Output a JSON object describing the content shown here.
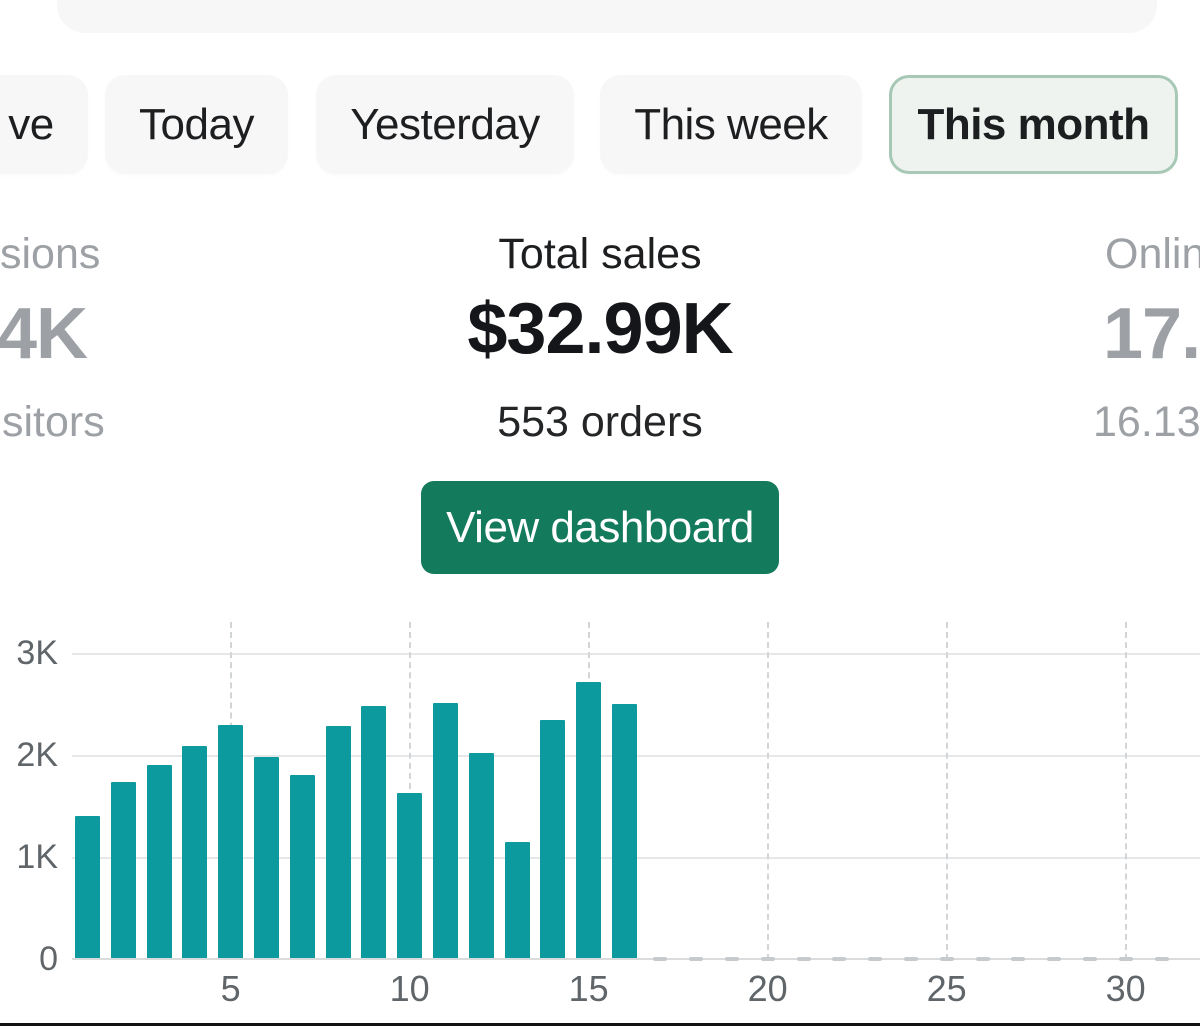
{
  "filters": {
    "items": [
      {
        "label": "ve",
        "selected": false
      },
      {
        "label": "Today",
        "selected": false
      },
      {
        "label": "Yesterday",
        "selected": false
      },
      {
        "label": "This week",
        "selected": false
      },
      {
        "label": "This month",
        "selected": true
      }
    ]
  },
  "stats": {
    "left": {
      "top_label": "sions",
      "value": "4K",
      "bottom_label": "sitors"
    },
    "center": {
      "top_label": "Total sales",
      "value": "$32.99K",
      "bottom_label": "553 orders"
    },
    "right": {
      "top_label": "Onlin",
      "value": "17.",
      "bottom_label": "16.13"
    }
  },
  "cta": {
    "label": "View dashboard"
  },
  "chart_data": {
    "type": "bar",
    "title": "",
    "xlabel": "",
    "ylabel": "",
    "x": [
      1,
      2,
      3,
      4,
      5,
      6,
      7,
      8,
      9,
      10,
      11,
      12,
      13,
      14,
      15,
      16
    ],
    "values": [
      1410,
      1750,
      1910,
      2100,
      2300,
      1990,
      1810,
      2290,
      2490,
      1640,
      2520,
      2030,
      1160,
      2350,
      2730,
      2510
    ],
    "x_range": [
      1,
      31
    ],
    "ylim": [
      0,
      3200
    ],
    "x_ticks": [
      5,
      10,
      15,
      20,
      25,
      30
    ],
    "y_ticks": [
      {
        "label": "0",
        "value": 0
      },
      {
        "label": "1K",
        "value": 1000
      },
      {
        "label": "2K",
        "value": 2000
      },
      {
        "label": "3K",
        "value": 3000
      }
    ],
    "grid": true,
    "legend": false,
    "future_days_dashed": [
      17,
      18,
      19,
      20,
      21,
      22,
      23,
      24,
      25,
      26,
      27,
      28,
      29,
      30,
      31
    ]
  },
  "colors": {
    "accent_green": "#147a5c",
    "teal": "#0d9a9e",
    "chip_bg": "#f7f7f8",
    "chip_selected_bg": "#eef3ef",
    "chip_selected_border": "#a6c8b5",
    "top_bar_bg": "#f7f7f7",
    "muted_text": "#9da1a5",
    "dark_text": "#1c1e20",
    "axis_text": "#5f6569",
    "gridline": "#e5e7e9",
    "dashed_gridline": "#d2d5d8",
    "future_dash": "#c6cacd",
    "bottom_line": "#101214"
  }
}
